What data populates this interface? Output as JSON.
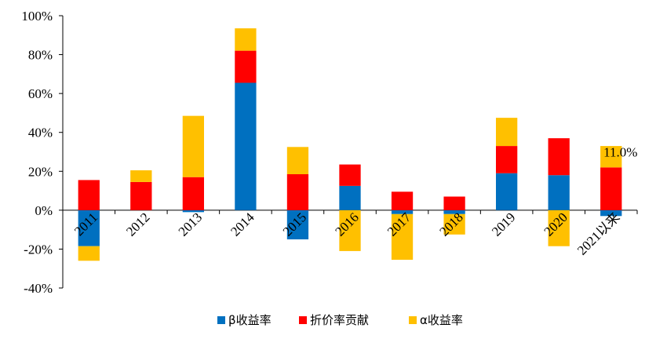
{
  "chart_data": {
    "type": "bar",
    "stacked": true,
    "title": "",
    "xlabel": "",
    "ylabel": "",
    "ylim": [
      -40,
      100
    ],
    "yticks": [
      100,
      80,
      60,
      40,
      20,
      0,
      -20,
      -40
    ],
    "ytick_suffix": "%",
    "categories": [
      "2011",
      "2012",
      "2013",
      "2014",
      "2015",
      "2016",
      "2017",
      "2018",
      "2019",
      "2020",
      "2021以来"
    ],
    "series": [
      {
        "name": "β收益率",
        "color": "#0070C0",
        "values": [
          -18.5,
          0,
          -1,
          65.5,
          -15,
          12.5,
          -2,
          -2,
          19,
          18,
          -3
        ]
      },
      {
        "name": "折价率贡献",
        "color": "#FF0000",
        "values": [
          15.5,
          14.5,
          17,
          16.5,
          18.5,
          11,
          9.5,
          7,
          14,
          19,
          22
        ]
      },
      {
        "name": "α收益率",
        "color": "#FFC000",
        "values": [
          -7.5,
          6,
          31.5,
          11.5,
          14,
          -21,
          -23.5,
          -10.5,
          14.5,
          -18.5,
          11
        ]
      }
    ],
    "annotations": [
      {
        "category": "2021以来",
        "text": "11.0%"
      }
    ],
    "legend": "bottom-center"
  }
}
